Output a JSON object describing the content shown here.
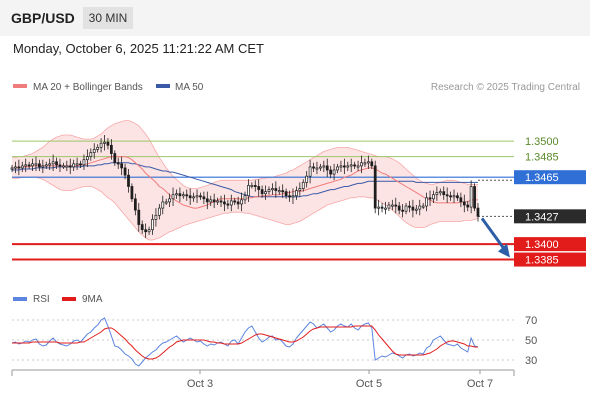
{
  "header": {
    "pair": "GBP/USD",
    "timeframe": "30 MIN",
    "datetime": "Monday, October 6, 2025 11:21:22 AM CET"
  },
  "colors": {
    "bollinger": "#f7a8a8",
    "bollinger_fill": "#fde4e4",
    "ma20": "#f07c7c",
    "ma50": "#3a5aa8",
    "resistance": "#9bc66a",
    "pivot": "#2f6fd6",
    "support": "#e21b1b",
    "current": "#2b2b2b",
    "candle": "#1f1f1f",
    "rsi": "#5b85e0",
    "rsi_ma": "#e21b1b",
    "arrow": "#2d5fa8"
  },
  "chart_data": [
    {
      "type": "candlestick",
      "legend": {
        "ma20_label": "MA 20 + Bollinger Bands",
        "ma50_label": "MA 50",
        "placement": "top-left"
      },
      "credit": "Research © 2025 Trading Central",
      "ylim": [
        1.337,
        1.354
      ],
      "x_ticks": [
        "Oct 3",
        "Oct 5",
        "Oct 7"
      ],
      "levels": [
        {
          "value": 1.35,
          "label": "1.3500",
          "kind": "resistance"
        },
        {
          "value": 1.3485,
          "label": "1.3485",
          "kind": "resistance"
        },
        {
          "value": 1.3465,
          "label": "1.3465",
          "kind": "pivot"
        },
        {
          "value": 1.3427,
          "label": "1.3427",
          "kind": "current"
        },
        {
          "value": 1.34,
          "label": "1.3400",
          "kind": "support"
        },
        {
          "value": 1.3385,
          "label": "1.3385",
          "kind": "support"
        }
      ],
      "close": [
        1.3474,
        1.3475,
        1.3474,
        1.3476,
        1.3477,
        1.3476,
        1.3478,
        1.3478,
        1.3475,
        1.3476,
        1.3477,
        1.3478,
        1.348,
        1.3477,
        1.3476,
        1.3476,
        1.3476,
        1.3475,
        1.3478,
        1.3478,
        1.3477,
        1.3482,
        1.3485,
        1.3489,
        1.3492,
        1.3494,
        1.3498,
        1.3499,
        1.3496,
        1.3488,
        1.3479,
        1.3478,
        1.3474,
        1.3467,
        1.3456,
        1.3444,
        1.3433,
        1.3419,
        1.3414,
        1.3412,
        1.3414,
        1.3424,
        1.3428,
        1.3435,
        1.3441,
        1.3441,
        1.3444,
        1.3448,
        1.3449,
        1.3447,
        1.3448,
        1.3447,
        1.3445,
        1.3446,
        1.3447,
        1.3446,
        1.3444,
        1.3441,
        1.3443,
        1.3441,
        1.3442,
        1.3441,
        1.3439,
        1.3438,
        1.3442,
        1.3441,
        1.3439,
        1.3443,
        1.3447,
        1.3457,
        1.3457,
        1.3456,
        1.3453,
        1.3449,
        1.3451,
        1.3453,
        1.3454,
        1.3452,
        1.3452,
        1.3451,
        1.3447,
        1.3446,
        1.3447,
        1.3452,
        1.3454,
        1.346,
        1.3466,
        1.3475,
        1.3474,
        1.3474,
        1.3475,
        1.3476,
        1.3472,
        1.3468,
        1.3472,
        1.3475,
        1.3476,
        1.3475,
        1.3476,
        1.3477,
        1.3476,
        1.3476,
        1.3479,
        1.3479,
        1.348,
        1.3476,
        1.3435,
        1.3436,
        1.3435,
        1.3435,
        1.3438,
        1.3438,
        1.3437,
        1.3433,
        1.3432,
        1.3437,
        1.3436,
        1.3433,
        1.3434,
        1.3437,
        1.3437,
        1.3445,
        1.3444,
        1.3448,
        1.345,
        1.3451,
        1.3448,
        1.3447,
        1.3446,
        1.3447,
        1.3445,
        1.3441,
        1.3438,
        1.3436,
        1.3456,
        1.3435,
        1.3427
      ],
      "ma20": [
        1.3474,
        1.3474,
        1.3474,
        1.3475,
        1.3475,
        1.3475,
        1.3476,
        1.3476,
        1.3476,
        1.3476,
        1.3476,
        1.3476,
        1.3476,
        1.3476,
        1.3476,
        1.3476,
        1.3476,
        1.3476,
        1.3476,
        1.3476,
        1.3477,
        1.3477,
        1.3478,
        1.3479,
        1.348,
        1.3481,
        1.3482,
        1.3483,
        1.3484,
        1.3485,
        1.3485,
        1.3485,
        1.3485,
        1.3485,
        1.3484,
        1.3482,
        1.3479,
        1.3476,
        1.3473,
        1.3469,
        1.3466,
        1.3463,
        1.346,
        1.3456,
        1.3454,
        1.3451,
        1.3448,
        1.3444,
        1.3442,
        1.344,
        1.3438,
        1.3437,
        1.3436,
        1.3435,
        1.3435,
        1.3436,
        1.3437,
        1.3438,
        1.344,
        1.3441,
        1.3443,
        1.3444,
        1.3444,
        1.3444,
        1.3444,
        1.3444,
        1.3444,
        1.3444,
        1.3444,
        1.3445,
        1.3445,
        1.3446,
        1.3446,
        1.3447,
        1.3447,
        1.3447,
        1.3448,
        1.3448,
        1.3448,
        1.3449,
        1.345,
        1.345,
        1.3451,
        1.3451,
        1.3451,
        1.3452,
        1.3453,
        1.3454,
        1.3455,
        1.3456,
        1.3457,
        1.3458,
        1.3459,
        1.346,
        1.3461,
        1.3462,
        1.3463,
        1.3465,
        1.3466,
        1.3467,
        1.3469,
        1.3471,
        1.3472,
        1.3473,
        1.3474,
        1.3474,
        1.3473,
        1.3471,
        1.3469,
        1.3468,
        1.3466,
        1.3464,
        1.3462,
        1.346,
        1.3458,
        1.3456,
        1.3454,
        1.3452,
        1.345,
        1.3448,
        1.3446,
        1.3444,
        1.3443,
        1.3441,
        1.344,
        1.344,
        1.344,
        1.344,
        1.344,
        1.344,
        1.344,
        1.3441,
        1.3441,
        1.3441,
        1.3443,
        1.3443,
        1.3443
      ],
      "ma50": [
        1.3472,
        1.3472,
        1.3472,
        1.3473,
        1.3473,
        1.3473,
        1.3473,
        1.3474,
        1.3474,
        1.3474,
        1.3474,
        1.3474,
        1.3474,
        1.3475,
        1.3475,
        1.3475,
        1.3475,
        1.3475,
        1.3475,
        1.3475,
        1.3475,
        1.3476,
        1.3476,
        1.3476,
        1.3476,
        1.3477,
        1.3477,
        1.3478,
        1.3478,
        1.3479,
        1.3479,
        1.3479,
        1.3479,
        1.3479,
        1.3479,
        1.3478,
        1.3478,
        1.3477,
        1.3476,
        1.3475,
        1.3475,
        1.3474,
        1.3473,
        1.3472,
        1.3471,
        1.3471,
        1.347,
        1.347,
        1.3469,
        1.3468,
        1.3467,
        1.3466,
        1.3465,
        1.3464,
        1.3463,
        1.3462,
        1.3461,
        1.346,
        1.3459,
        1.3458,
        1.3457,
        1.3456,
        1.3455,
        1.3454,
        1.3453,
        1.3451,
        1.345,
        1.3449,
        1.3448,
        1.3447,
        1.3446,
        1.3446,
        1.3446,
        1.3446,
        1.3446,
        1.3446,
        1.3446,
        1.3446,
        1.3446,
        1.3446,
        1.3446,
        1.3446,
        1.3446,
        1.3446,
        1.3446,
        1.3447,
        1.3447,
        1.3448,
        1.3449,
        1.3449,
        1.345,
        1.3451,
        1.3452,
        1.3453,
        1.3453,
        1.3454,
        1.3455,
        1.3456,
        1.3456,
        1.3457,
        1.3458,
        1.3459,
        1.3459,
        1.346,
        1.3461,
        1.3461,
        1.3461,
        1.3461,
        1.3461,
        1.3461,
        1.3461,
        1.3461,
        1.3461,
        1.3461,
        1.3461,
        1.3461,
        1.3461,
        1.3461,
        1.346,
        1.346,
        1.346,
        1.346,
        1.346,
        1.346,
        1.346,
        1.346,
        1.346,
        1.346,
        1.346,
        1.346,
        1.346,
        1.346,
        1.346,
        1.346,
        1.346,
        1.346,
        1.346
      ],
      "bb_upper": [
        1.3484,
        1.3484,
        1.3485,
        1.3485,
        1.3486,
        1.3487,
        1.3488,
        1.349,
        1.3492,
        1.3494,
        1.3497,
        1.35,
        1.3502,
        1.3504,
        1.3505,
        1.3506,
        1.3506,
        1.3506,
        1.3505,
        1.3504,
        1.3503,
        1.3502,
        1.3502,
        1.3502,
        1.3503,
        1.3505,
        1.3507,
        1.351,
        1.3513,
        1.3515,
        1.3517,
        1.3518,
        1.3519,
        1.352,
        1.352,
        1.3519,
        1.3517,
        1.3515,
        1.3511,
        1.3507,
        1.3502,
        1.3496,
        1.349,
        1.3484,
        1.3479,
        1.3474,
        1.347,
        1.3466,
        1.3463,
        1.346,
        1.3457,
        1.3455,
        1.3454,
        1.3454,
        1.3454,
        1.3455,
        1.3456,
        1.3457,
        1.3458,
        1.346,
        1.3461,
        1.3462,
        1.3462,
        1.3462,
        1.3462,
        1.3462,
        1.3462,
        1.3462,
        1.3462,
        1.3462,
        1.3462,
        1.3463,
        1.3463,
        1.3464,
        1.3464,
        1.3465,
        1.3465,
        1.3466,
        1.3467,
        1.3468,
        1.3469,
        1.3471,
        1.3472,
        1.3474,
        1.3476,
        1.3478,
        1.348,
        1.3482,
        1.3484,
        1.3486,
        1.3488,
        1.349,
        1.3491,
        1.3492,
        1.3493,
        1.3494,
        1.3494,
        1.3494,
        1.3494,
        1.3493,
        1.3492,
        1.3491,
        1.349,
        1.3489,
        1.3488,
        1.3487,
        1.3486,
        1.3485,
        1.3485,
        1.3485,
        1.3484,
        1.3483,
        1.3481,
        1.3479,
        1.3476,
        1.3473,
        1.347,
        1.3467,
        1.3464,
        1.3462,
        1.346,
        1.3459,
        1.3458,
        1.3458,
        1.3459,
        1.346,
        1.3461,
        1.3462,
        1.3462,
        1.3462,
        1.3461,
        1.346,
        1.3459,
        1.3458,
        1.3458,
        1.3458,
        1.3458
      ],
      "bb_lower": [
        1.3464,
        1.3464,
        1.3464,
        1.3465,
        1.3465,
        1.3465,
        1.3465,
        1.3465,
        1.3464,
        1.3463,
        1.3461,
        1.3459,
        1.3457,
        1.3455,
        1.3453,
        1.3452,
        1.3452,
        1.3452,
        1.3453,
        1.3454,
        1.3455,
        1.3456,
        1.3456,
        1.3456,
        1.3455,
        1.3453,
        1.3451,
        1.3448,
        1.3445,
        1.3443,
        1.344,
        1.3436,
        1.3432,
        1.3428,
        1.3424,
        1.342,
        1.3416,
        1.3412,
        1.3409,
        1.3406,
        1.3404,
        1.3404,
        1.3405,
        1.3406,
        1.3408,
        1.341,
        1.3412,
        1.3413,
        1.3415,
        1.3416,
        1.3418,
        1.3419,
        1.342,
        1.3421,
        1.3422,
        1.3423,
        1.3424,
        1.3425,
        1.3426,
        1.3427,
        1.3428,
        1.3429,
        1.343,
        1.343,
        1.3431,
        1.3431,
        1.3431,
        1.3431,
        1.343,
        1.343,
        1.3429,
        1.3428,
        1.3427,
        1.3426,
        1.3425,
        1.3424,
        1.3423,
        1.3422,
        1.3421,
        1.342,
        1.3419,
        1.3419,
        1.342,
        1.3421,
        1.3422,
        1.3424,
        1.3426,
        1.3428,
        1.343,
        1.3432,
        1.3434,
        1.3436,
        1.3438,
        1.3439,
        1.344,
        1.3441,
        1.3442,
        1.3443,
        1.3444,
        1.3445,
        1.3445,
        1.3446,
        1.3446,
        1.3446,
        1.3445,
        1.3445,
        1.3444,
        1.3442,
        1.344,
        1.3438,
        1.3436,
        1.3433,
        1.343,
        1.3427,
        1.3424,
        1.3421,
        1.3419,
        1.3417,
        1.3416,
        1.3416,
        1.3416,
        1.3417,
        1.3419,
        1.342,
        1.3421,
        1.3422,
        1.3422,
        1.3422,
        1.3422,
        1.3422,
        1.3422,
        1.3422,
        1.3423,
        1.3423,
        1.3423,
        1.3424,
        1.3425
      ],
      "forecast_arrow": {
        "from": 1.3427,
        "to": 1.3385
      }
    },
    {
      "type": "line",
      "legend": {
        "rsi_label": "RSI",
        "ma_label": "9MA"
      },
      "ylim": [
        20,
        80
      ],
      "y_ticks": [
        70,
        50,
        30
      ],
      "rsi": [
        47,
        48,
        46,
        47,
        49,
        48,
        50,
        51,
        46,
        44,
        45,
        49,
        52,
        48,
        46,
        45,
        44,
        46,
        49,
        50,
        48,
        52,
        56,
        58,
        62,
        65,
        70,
        72,
        64,
        54,
        44,
        43,
        40,
        36,
        34,
        31,
        26,
        24,
        28,
        32,
        35,
        38,
        40,
        44,
        47,
        48,
        50,
        52,
        54,
        51,
        48,
        50,
        52,
        50,
        48,
        49,
        46,
        44,
        46,
        45,
        47,
        48,
        46,
        44,
        49,
        50,
        46,
        52,
        58,
        62,
        64,
        58,
        52,
        48,
        50,
        53,
        54,
        50,
        51,
        48,
        44,
        43,
        46,
        52,
        56,
        60,
        64,
        68,
        66,
        62,
        64,
        66,
        62,
        58,
        60,
        64,
        66,
        64,
        63,
        66,
        62,
        60,
        64,
        66,
        67,
        62,
        30,
        32,
        34,
        33,
        35,
        37,
        36,
        34,
        32,
        35,
        36,
        34,
        35,
        37,
        36,
        42,
        44,
        50,
        52,
        54,
        50,
        46,
        45,
        44,
        46,
        42,
        40,
        38,
        52,
        44,
        43
      ],
      "ma9": [
        47,
        47,
        47,
        47,
        47,
        47,
        48,
        48,
        48,
        48,
        48,
        48,
        48,
        48,
        47,
        47,
        47,
        47,
        47,
        47,
        48,
        48,
        50,
        52,
        54,
        56,
        58,
        61,
        62,
        62,
        60,
        57,
        54,
        51,
        47,
        44,
        40,
        37,
        34,
        32,
        31,
        31,
        32,
        34,
        37,
        40,
        43,
        45,
        48,
        49,
        50,
        50,
        50,
        50,
        50,
        50,
        50,
        49,
        48,
        48,
        47,
        47,
        46,
        46,
        46,
        46,
        46,
        47,
        49,
        51,
        53,
        55,
        56,
        56,
        55,
        54,
        53,
        52,
        51,
        50,
        49,
        48,
        48,
        49,
        51,
        53,
        56,
        59,
        61,
        62,
        63,
        63,
        63,
        63,
        63,
        63,
        63,
        63,
        63,
        63,
        64,
        64,
        64,
        64,
        64,
        64,
        60,
        55,
        51,
        47,
        43,
        39,
        36,
        35,
        35,
        35,
        35,
        35,
        35,
        35,
        35,
        36,
        37,
        39,
        41,
        44,
        46,
        48,
        49,
        49,
        48,
        47,
        46,
        44,
        44,
        43,
        43
      ]
    }
  ]
}
